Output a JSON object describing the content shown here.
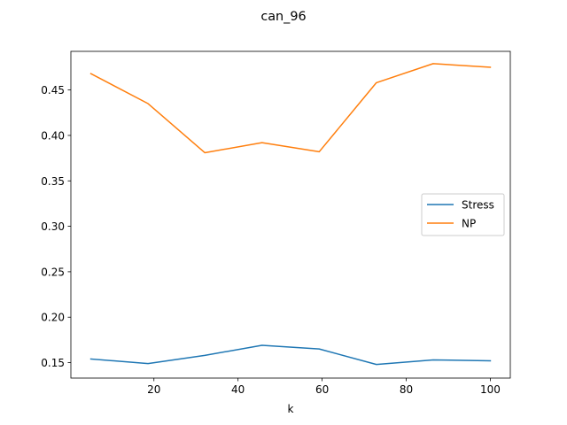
{
  "chart_data": {
    "type": "line",
    "title": "can_96",
    "xlabel": "k",
    "ylabel": "",
    "xlim": [
      0.25,
      104.75
    ],
    "ylim": [
      0.133,
      0.4925
    ],
    "xticks": [
      20,
      40,
      60,
      80,
      100
    ],
    "xtick_labels": [
      "20",
      "40",
      "60",
      "80",
      "100"
    ],
    "yticks": [
      0.15,
      0.2,
      0.25,
      0.3,
      0.35,
      0.4,
      0.45
    ],
    "ytick_labels": [
      "0.15",
      "0.20",
      "0.25",
      "0.30",
      "0.35",
      "0.40",
      "0.45"
    ],
    "x": [
      5,
      18.6,
      32.1,
      45.7,
      59.3,
      72.9,
      86.4,
      100
    ],
    "series": [
      {
        "name": "Stress",
        "color": "#1f77b4",
        "values": [
          0.154,
          0.149,
          0.158,
          0.169,
          0.165,
          0.148,
          0.153,
          0.152
        ]
      },
      {
        "name": "NP",
        "color": "#ff7f0e",
        "values": [
          0.468,
          0.435,
          0.381,
          0.392,
          0.382,
          0.458,
          0.479,
          0.475
        ]
      }
    ],
    "legend_position": "center-right",
    "grid": false
  }
}
